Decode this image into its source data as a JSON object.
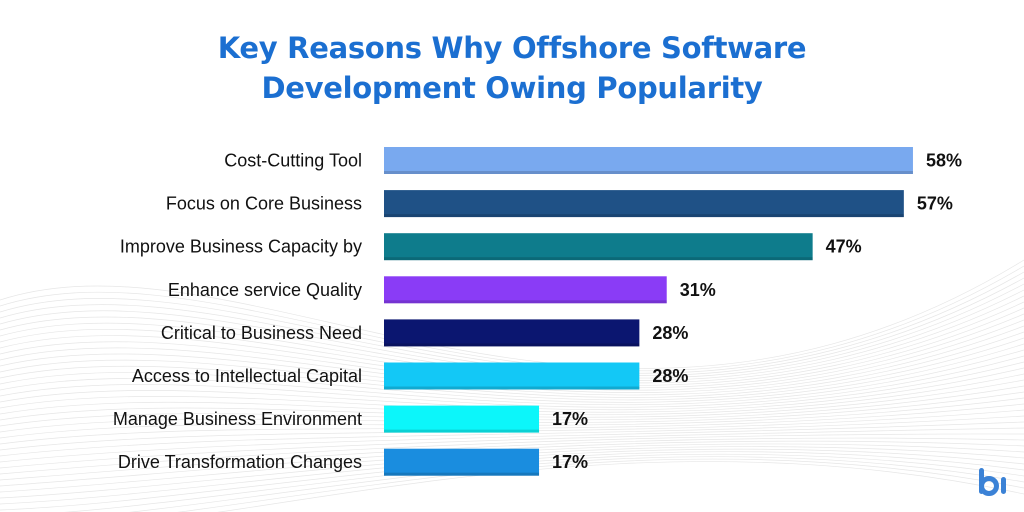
{
  "chart_data": {
    "type": "bar",
    "orientation": "horizontal",
    "title": "Key Reasons Why Offshore Software Development Owing Popularity",
    "title_lines": [
      "Key Reasons Why Offshore Software",
      "Development Owing Popularity"
    ],
    "categories": [
      "Cost-Cutting Tool",
      "Focus on Core Business",
      "Improve Business Capacity by",
      "Enhance service Quality",
      "Critical to Business Need",
      "Access to Intellectual Capital",
      "Manage Business Environment",
      "Drive Transformation Changes"
    ],
    "values": [
      58,
      57,
      47,
      31,
      28,
      28,
      17,
      17
    ],
    "value_labels": [
      "58%",
      "57%",
      "47%",
      "31%",
      "28%",
      "28%",
      "17%",
      "17%"
    ],
    "unit": "%",
    "colors": [
      "#79a9ef",
      "#1f5186",
      "#0e7c8c",
      "#8a3cf6",
      "#0b1670",
      "#13c8f6",
      "#0cf6fa",
      "#1a8ddf"
    ],
    "grid": false,
    "legend": "none",
    "title_color": "#1b6fd1"
  },
  "logo": {
    "text": "bl",
    "color": "#3b82d6"
  }
}
